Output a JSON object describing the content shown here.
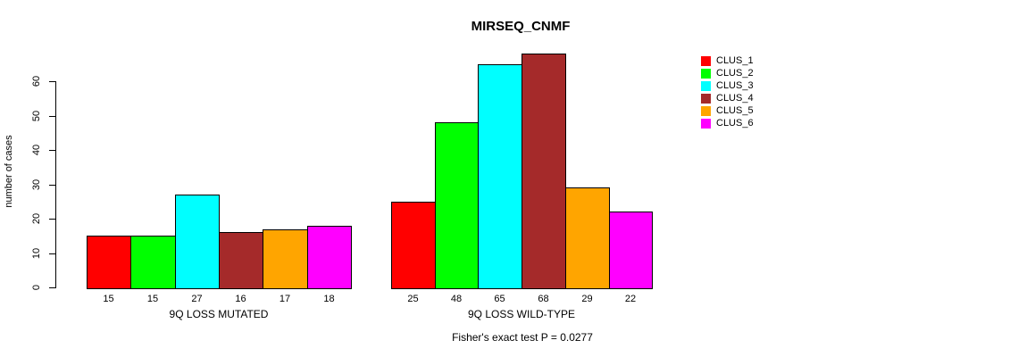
{
  "chart_data": {
    "type": "bar",
    "title": "MIRSEQ_CNMF",
    "ylabel": "number of cases",
    "xlabel": "",
    "ylim": [
      0,
      60
    ],
    "yticks": [
      0,
      10,
      20,
      30,
      40,
      50,
      60
    ],
    "grid": false,
    "legend_position": "right",
    "bar_border_color": "#000000",
    "groups": [
      {
        "label": "9Q LOSS MUTATED",
        "values": [
          15,
          15,
          27,
          16,
          17,
          18
        ]
      },
      {
        "label": "9Q LOSS WILD-TYPE",
        "values": [
          25,
          48,
          65,
          68,
          29,
          22
        ]
      }
    ],
    "series": [
      {
        "name": "CLUS_1",
        "color": "#FF0000",
        "values": [
          15,
          25
        ]
      },
      {
        "name": "CLUS_2",
        "color": "#00FF00",
        "values": [
          15,
          48
        ]
      },
      {
        "name": "CLUS_3",
        "color": "#00FFFF",
        "values": [
          27,
          65
        ]
      },
      {
        "name": "CLUS_4",
        "color": "#A52A2A",
        "values": [
          16,
          68
        ]
      },
      {
        "name": "CLUS_5",
        "color": "#FFA500",
        "values": [
          17,
          29
        ]
      },
      {
        "name": "CLUS_6",
        "color": "#FF00FF",
        "values": [
          18,
          22
        ]
      }
    ],
    "annotation": "Fisher's exact test P = 0.0277"
  }
}
